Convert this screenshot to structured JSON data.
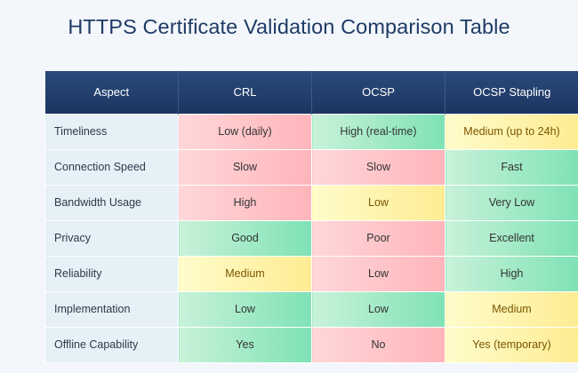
{
  "title": "HTTPS Certificate Validation Comparison Table",
  "columns": [
    "Aspect",
    "CRL",
    "OCSP",
    "OCSP Stapling"
  ],
  "colors": {
    "header": "#1c3560",
    "bad": "#ffb5ba",
    "good": "#7fe2b5",
    "medium": "#fdec92"
  },
  "rows": [
    {
      "aspect": "Timeliness",
      "cells": [
        {
          "text": "Low (daily)",
          "rating": "bad"
        },
        {
          "text": "High (real-time)",
          "rating": "good"
        },
        {
          "text": "Medium (up to 24h)",
          "rating": "mid"
        }
      ]
    },
    {
      "aspect": "Connection Speed",
      "cells": [
        {
          "text": "Slow",
          "rating": "bad"
        },
        {
          "text": "Slow",
          "rating": "bad"
        },
        {
          "text": "Fast",
          "rating": "good"
        }
      ]
    },
    {
      "aspect": "Bandwidth Usage",
      "cells": [
        {
          "text": "High",
          "rating": "bad"
        },
        {
          "text": "Low",
          "rating": "mid"
        },
        {
          "text": "Very Low",
          "rating": "good"
        }
      ]
    },
    {
      "aspect": "Privacy",
      "cells": [
        {
          "text": "Good",
          "rating": "good"
        },
        {
          "text": "Poor",
          "rating": "bad"
        },
        {
          "text": "Excellent",
          "rating": "good"
        }
      ]
    },
    {
      "aspect": "Reliability",
      "cells": [
        {
          "text": "Medium",
          "rating": "mid"
        },
        {
          "text": "Low",
          "rating": "bad"
        },
        {
          "text": "High",
          "rating": "good"
        }
      ]
    },
    {
      "aspect": "Implementation",
      "cells": [
        {
          "text": "Low",
          "rating": "good"
        },
        {
          "text": "Low",
          "rating": "good"
        },
        {
          "text": "Medium",
          "rating": "mid"
        }
      ]
    },
    {
      "aspect": "Offline Capability",
      "cells": [
        {
          "text": "Yes",
          "rating": "good"
        },
        {
          "text": "No",
          "rating": "bad"
        },
        {
          "text": "Yes (temporary)",
          "rating": "mid"
        }
      ]
    }
  ]
}
